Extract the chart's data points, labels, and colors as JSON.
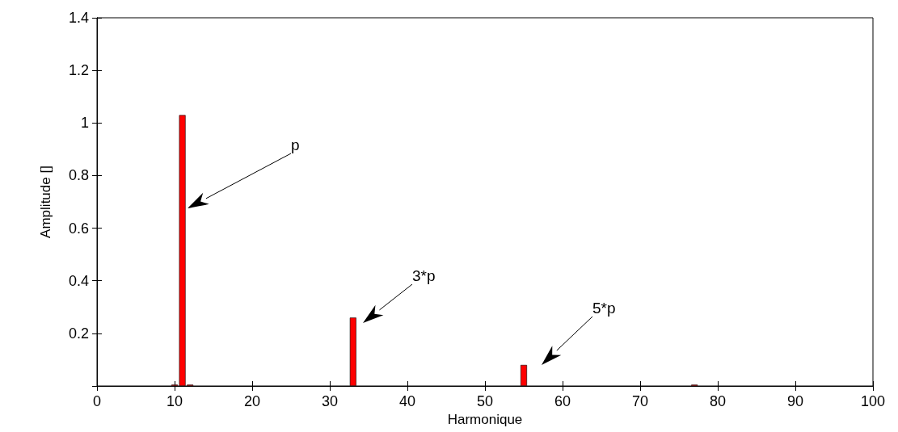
{
  "chart_data": {
    "type": "bar",
    "xlabel": "Harmonique",
    "ylabel": "Amplitude []",
    "x": [
      10,
      11,
      12,
      33,
      55,
      77
    ],
    "series": [
      {
        "color": "#ff0000",
        "values": [
          0.005,
          1.03,
          0.005,
          0.26,
          0.08,
          0.005
        ]
      }
    ],
    "xlim": [
      0,
      100
    ],
    "xticks": [
      0,
      10,
      20,
      30,
      40,
      50,
      60,
      70,
      80,
      90,
      100
    ],
    "ylim": [
      0,
      1.4
    ],
    "yticks": [
      {
        "value": 0,
        "label": null
      },
      0.2,
      0.4,
      0.6,
      0.8,
      1,
      1.2,
      1.4
    ],
    "grid": false,
    "annotations": [
      "p",
      "3*p",
      "5*p"
    ]
  }
}
